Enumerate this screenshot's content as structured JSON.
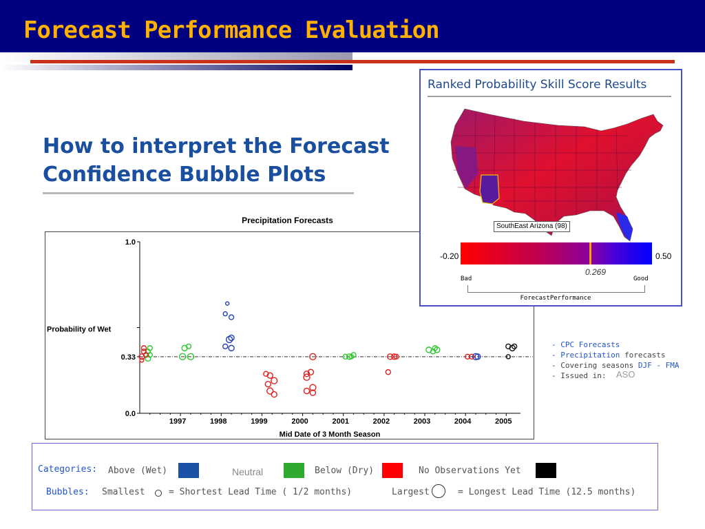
{
  "slide": {
    "title": "Forecast Performance Evaluation",
    "subtitle": "How to interpret the Forecast Confidence Bubble Plots"
  },
  "chart_data": [
    {
      "type": "scatter",
      "title": "Precipitation Forecasts",
      "xlabel": "Mid Date of 3 Month Season",
      "ylabel": "Probability of Wet",
      "yticks": [
        "1.0",
        "0.33",
        "0.0"
      ],
      "xticks": [
        "1997",
        "1998",
        "1999",
        "2000",
        "2001",
        "2002",
        "2003",
        "2004",
        "2005"
      ],
      "ylim": [
        0,
        1
      ],
      "xlim": [
        1996.0,
        2005.35
      ],
      "reference_line": 0.33,
      "grid": false,
      "series": [
        {
          "category": "above",
          "color": "#1f3fbf",
          "points": [
            [
              1998.15,
              0.64,
              2.5
            ],
            [
              1998.1,
              0.58,
              3
            ],
            [
              1998.25,
              0.56,
              3.5
            ],
            [
              1998.1,
              0.39,
              3.5
            ],
            [
              1998.2,
              0.43,
              4.5
            ],
            [
              1998.25,
              0.38,
              4
            ],
            [
              1998.25,
              0.44,
              4
            ],
            [
              2004.25,
              0.33,
              4.5
            ],
            [
              2004.3,
              0.33,
              4
            ]
          ]
        },
        {
          "category": "below",
          "color": "#2ec82e",
          "points": [
            [
              1996.2,
              0.36,
              3.5
            ],
            [
              1996.25,
              0.38,
              3.5
            ],
            [
              1996.2,
              0.32,
              4
            ],
            [
              1996.25,
              0.34,
              3.5
            ],
            [
              1997.1,
              0.38,
              4
            ],
            [
              1997.2,
              0.39,
              3.5
            ],
            [
              1997.05,
              0.33,
              4.5
            ],
            [
              1997.25,
              0.33,
              4.5
            ],
            [
              2001.05,
              0.33,
              3.5
            ],
            [
              2001.15,
              0.33,
              4
            ],
            [
              2001.25,
              0.34,
              3.5
            ],
            [
              2001.2,
              0.33,
              3
            ],
            [
              2003.1,
              0.37,
              4
            ],
            [
              2003.25,
              0.38,
              3.5
            ],
            [
              2003.2,
              0.36,
              3.5
            ],
            [
              2003.3,
              0.37,
              4
            ]
          ]
        },
        {
          "category": "dry",
          "color": "#e02020",
          "points": [
            [
              1996.05,
              0.33,
              4
            ],
            [
              1996.15,
              0.34,
              3.5
            ],
            [
              1996.1,
              0.38,
              3.5
            ],
            [
              1996.1,
              0.36,
              3.5
            ],
            [
              1996.05,
              0.31,
              3
            ],
            [
              1999.1,
              0.23,
              3.5
            ],
            [
              1999.2,
              0.22,
              4
            ],
            [
              1999.3,
              0.19,
              4.5
            ],
            [
              1999.15,
              0.17,
              4
            ],
            [
              1999.2,
              0.13,
              4.5
            ],
            [
              1999.3,
              0.11,
              4
            ],
            [
              2000.1,
              0.23,
              4
            ],
            [
              2000.2,
              0.24,
              4
            ],
            [
              2000.1,
              0.21,
              4.5
            ],
            [
              2000.25,
              0.33,
              4.5
            ],
            [
              2000.1,
              0.13,
              4
            ],
            [
              2000.25,
              0.15,
              4.5
            ],
            [
              2000.25,
              0.12,
              4
            ],
            [
              2002.1,
              0.24,
              3.5
            ],
            [
              2002.15,
              0.33,
              4
            ],
            [
              2002.25,
              0.33,
              4
            ],
            [
              2002.3,
              0.33,
              3.5
            ],
            [
              2004.05,
              0.33,
              3.5
            ],
            [
              2004.15,
              0.33,
              3.5
            ]
          ]
        },
        {
          "category": "no_obs",
          "color": "#111111",
          "points": [
            [
              2005.05,
              0.39,
              3.5
            ],
            [
              2005.15,
              0.38,
              4
            ],
            [
              2005.2,
              0.39,
              3.5
            ],
            [
              2005.05,
              0.33,
              3
            ]
          ]
        }
      ]
    },
    {
      "type": "heatmap",
      "title": "Ranked Probability Skill Score Results",
      "colorbar": {
        "min": "-0.20",
        "max": "0.50",
        "min_value": -0.2,
        "max_value": 0.5,
        "marker_value": 0.269,
        "marker_label": "0.269",
        "low_label": "Bad",
        "high_label": "Good",
        "caption": "ForecastPerformance",
        "colors": [
          "#ff0000",
          "#c0004e",
          "#8a00a0",
          "#4a00d8",
          "#0000ff"
        ]
      },
      "tooltip": "SouthEast Arizona (98)"
    }
  ],
  "side_notes": {
    "cpc": "- CPC Forecasts",
    "precip_blue": "- Precipitation",
    "precip_rest": " forecasts",
    "seasons": "- Covering seasons",
    "seasons_blue": " DJF - FMA",
    "issued": "- Issued in:",
    "aso": "ASO"
  },
  "legend": {
    "categories_label": "Categories:",
    "above": "Above (Wet)",
    "neutral": "Neutral",
    "below": "Below (Dry)",
    "no_obs": "No Observations Yet",
    "bubbles_label": "Bubbles:",
    "smallest": "Smallest",
    "smallest_desc": "= Shortest Lead Time ( 1/2 months)",
    "largest": "Largest",
    "largest_desc": "= Longest Lead Time (12.5 months)",
    "colors": {
      "above": "#1b52a8",
      "neutral": "#2eaa2e",
      "below": "#ff0000",
      "no_obs": "#000000"
    }
  }
}
